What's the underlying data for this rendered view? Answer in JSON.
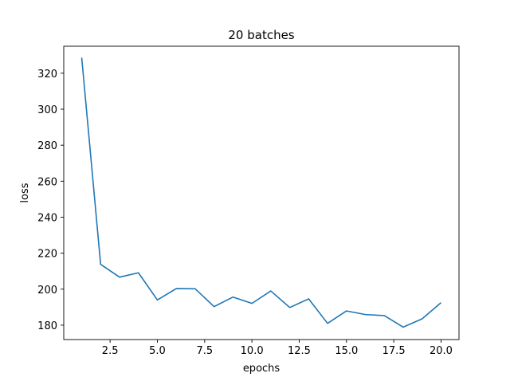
{
  "chart_data": {
    "type": "line",
    "title": "20 batches",
    "xlabel": "epochs",
    "ylabel": "loss",
    "xlim": [
      0.05,
      20.95
    ],
    "ylim": [
      172,
      335
    ],
    "xticks": [
      2.5,
      5.0,
      7.5,
      10.0,
      12.5,
      15.0,
      17.5,
      20.0
    ],
    "xtick_labels": [
      "2.5",
      "5.0",
      "7.5",
      "10.0",
      "12.5",
      "15.0",
      "17.5",
      "20.0"
    ],
    "yticks": [
      180,
      200,
      220,
      240,
      260,
      280,
      300,
      320
    ],
    "ytick_labels": [
      "180",
      "200",
      "220",
      "240",
      "260",
      "280",
      "300",
      "320"
    ],
    "grid": false,
    "series": [
      {
        "color": "#1f77b4",
        "x": [
          1,
          2,
          3,
          4,
          5,
          6,
          7,
          8,
          9,
          10,
          11,
          12,
          13,
          14,
          15,
          16,
          17,
          18,
          19,
          20
        ],
        "y": [
          328.6,
          213.8,
          206.7,
          209.1,
          194.0,
          200.3,
          200.2,
          190.3,
          195.6,
          192.1,
          199.0,
          189.8,
          194.6,
          181.0,
          187.9,
          185.9,
          185.3,
          178.9,
          183.5,
          192.5
        ]
      }
    ]
  }
}
